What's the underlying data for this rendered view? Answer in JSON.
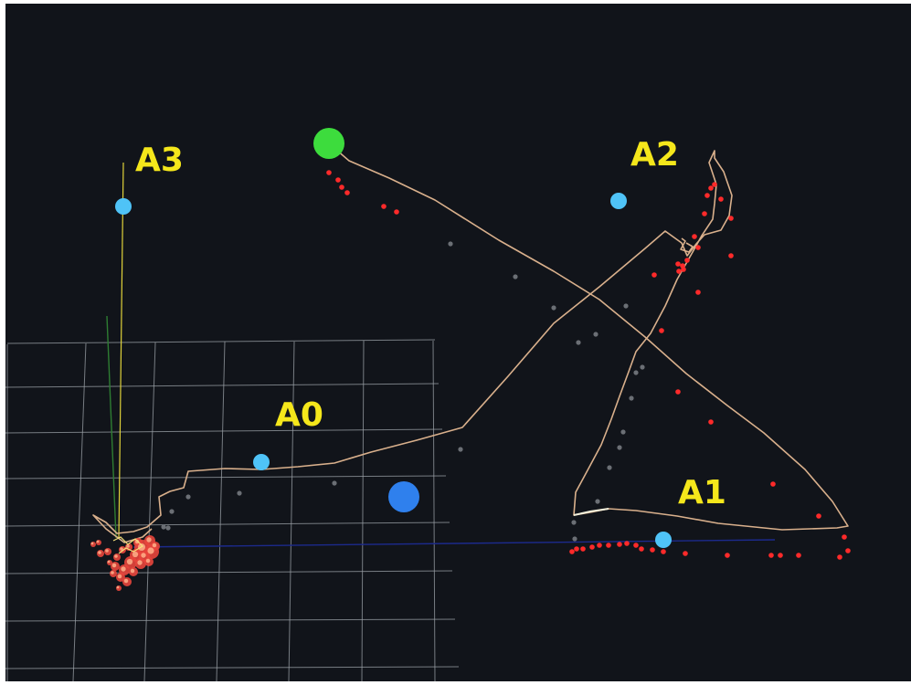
{
  "viewport": {
    "background": "#11141a",
    "grid_color": "#9aa0a6",
    "trajectory_color": "#d9b08c",
    "red_point_color": "#ff2a2a",
    "gray_point_color": "#6b6f75",
    "anchor_color": "#4fc3f7",
    "label_color": "#f5e71b",
    "start_marker_color": "#3ddc3d",
    "end_marker_color": "#2f80ed"
  },
  "axes": {
    "x_axis_color": "#1c2a8c",
    "y_axis_color": "#e0d23a",
    "z_axis_color": "#2e7d32"
  },
  "anchors": [
    {
      "name": "A0",
      "label": "A0"
    },
    {
      "name": "A1",
      "label": "A1"
    },
    {
      "name": "A2",
      "label": "A2"
    },
    {
      "name": "A3",
      "label": "A3"
    }
  ],
  "markers": {
    "start_icon": "green-sphere-icon",
    "end_icon": "blue-sphere-icon"
  }
}
